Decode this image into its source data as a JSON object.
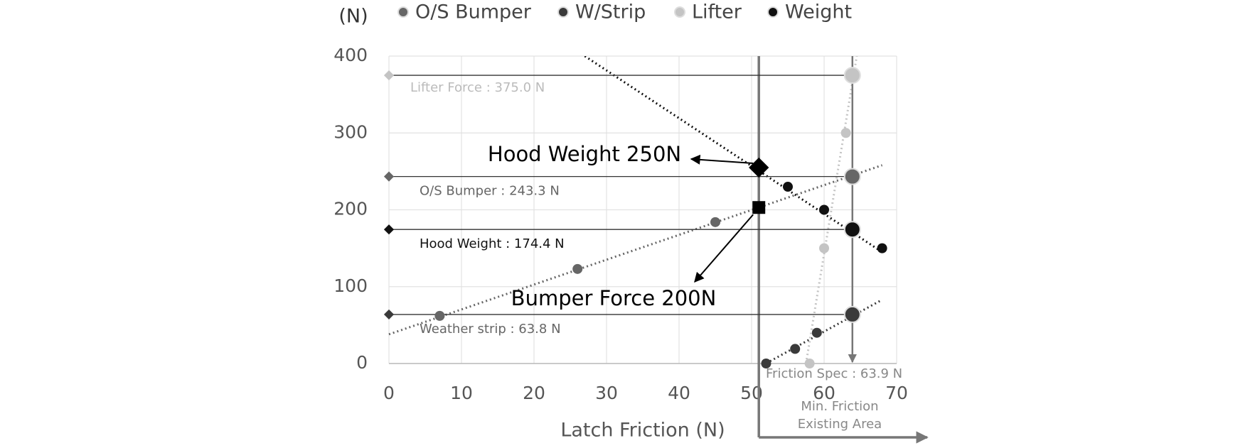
{
  "chart_data": {
    "type": "scatter",
    "y_label": "(N)",
    "x_label": "Latch Friction (N)",
    "xlim": [
      0,
      70
    ],
    "xticks": [
      0,
      10,
      20,
      30,
      40,
      50,
      60,
      70
    ],
    "ylim": [
      0,
      400
    ],
    "yticks": [
      0,
      100,
      200,
      300,
      400
    ],
    "grid": true,
    "legend": "top",
    "series": [
      {
        "name": "O/S Bumper",
        "color": "#666666",
        "x": [
          7,
          26,
          45
        ],
        "values": [
          62,
          123,
          184
        ],
        "trend": {
          "x": [
            0,
            68
          ],
          "y": [
            38,
            258
          ]
        }
      },
      {
        "name": "W/Strip",
        "color": "#3a3a3a",
        "x": [
          52,
          56,
          59
        ],
        "values": [
          0,
          19,
          40
        ],
        "trend": {
          "x": [
            51,
            68
          ],
          "y": [
            -5,
            83
          ]
        }
      },
      {
        "name": "Lifter",
        "color": "#c4c4c4",
        "x": [
          58,
          60,
          63
        ],
        "values": [
          0,
          150,
          300
        ],
        "trend": {
          "x": [
            57.5,
            64.5
          ],
          "y": [
            0,
            400
          ]
        }
      },
      {
        "name": "Weight",
        "color": "#111111",
        "x": [
          55,
          60,
          68
        ],
        "values": [
          230,
          200,
          150
        ],
        "trend": {
          "x": [
            27,
            68
          ],
          "y": [
            400,
            145
          ]
        }
      }
    ],
    "reference_lines": [
      {
        "label": "Lifter Force : 375.0 N",
        "value": 375,
        "color": "#c4c4c4"
      },
      {
        "label": "O/S Bumper : 243.3 N",
        "value": 243.3,
        "color": "#666666"
      },
      {
        "label": "Hood Weight : 174.4 N",
        "value": 174.4,
        "color": "#111111"
      },
      {
        "label": "Weather strip : 63.8 N",
        "value": 63.8,
        "color": "#3a3a3a"
      }
    ],
    "friction_spec": {
      "label": "Friction Spec : 63.9 N",
      "x": 63.9
    },
    "min_friction": {
      "label": [
        "Min. Friction",
        "Existing Area"
      ],
      "x": 51
    },
    "annotations": [
      {
        "text": "Hood Weight 250N",
        "x": 51,
        "y": 255,
        "marker": "diamond"
      },
      {
        "text": "Bumper Force 200N",
        "x": 51,
        "y": 203,
        "marker": "square"
      }
    ]
  }
}
